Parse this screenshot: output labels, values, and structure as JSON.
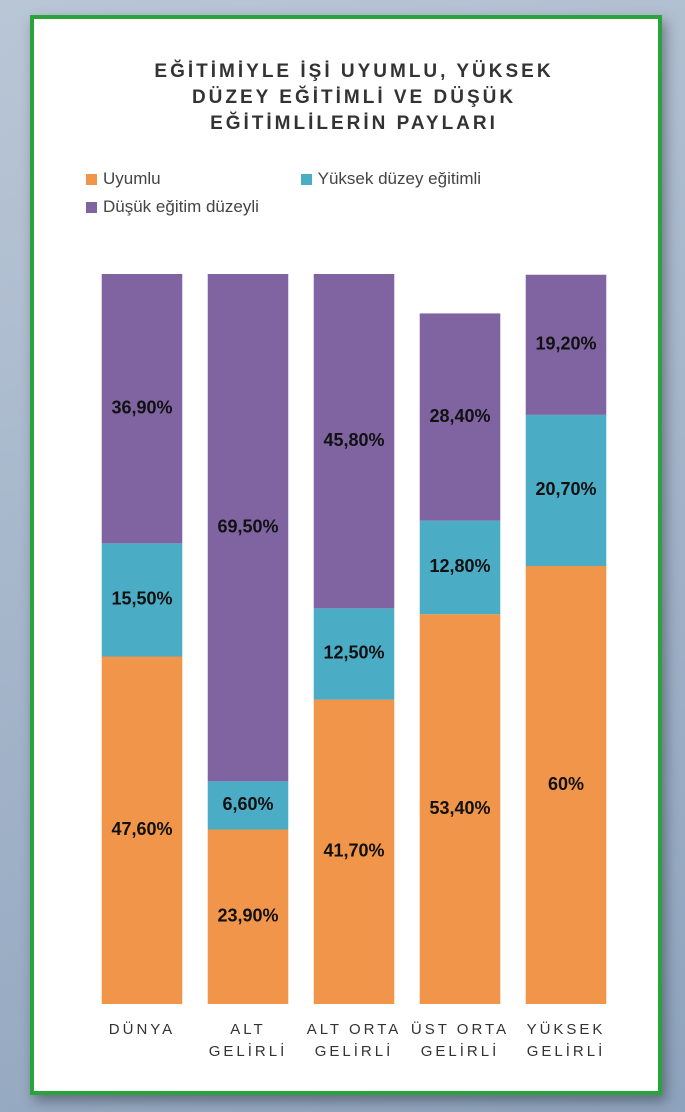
{
  "chart_data": {
    "type": "stacked-bar",
    "title": "EĞİTİMİYLE İŞİ UYUMLU, YÜKSEK DÜZEY EĞİTİMLİ VE DÜŞÜK EĞİTİMLİLERİN PAYLARI",
    "categories": [
      "DÜNYA",
      "ALT GELİRLİ",
      "ALT ORTA GELİRLİ",
      "ÜST ORTA GELİRLİ",
      "YÜKSEK GELİRLİ"
    ],
    "ylim": [
      0,
      100
    ],
    "series": [
      {
        "name": "Uyumlu",
        "color": "#f0954a",
        "values": [
          47.6,
          23.9,
          41.7,
          53.4,
          60
        ],
        "value_labels": [
          "47,60%",
          "23,90%",
          "41,70%",
          "53,40%",
          "60%"
        ]
      },
      {
        "name": "Yüksek düzey eğitimli",
        "color": "#4bacc6",
        "values": [
          15.5,
          6.6,
          12.5,
          12.8,
          20.7
        ],
        "value_labels": [
          "15,50%",
          "6,60%",
          "12,50%",
          "12,80%",
          "20,70%"
        ]
      },
      {
        "name": "Düşük eğitim düzeyli",
        "color": "#8064a2",
        "values": [
          36.9,
          69.5,
          45.8,
          28.4,
          19.2
        ],
        "value_labels": [
          "36,90%",
          "69,50%",
          "45,80%",
          "28,40%",
          "19,20%"
        ]
      }
    ]
  }
}
